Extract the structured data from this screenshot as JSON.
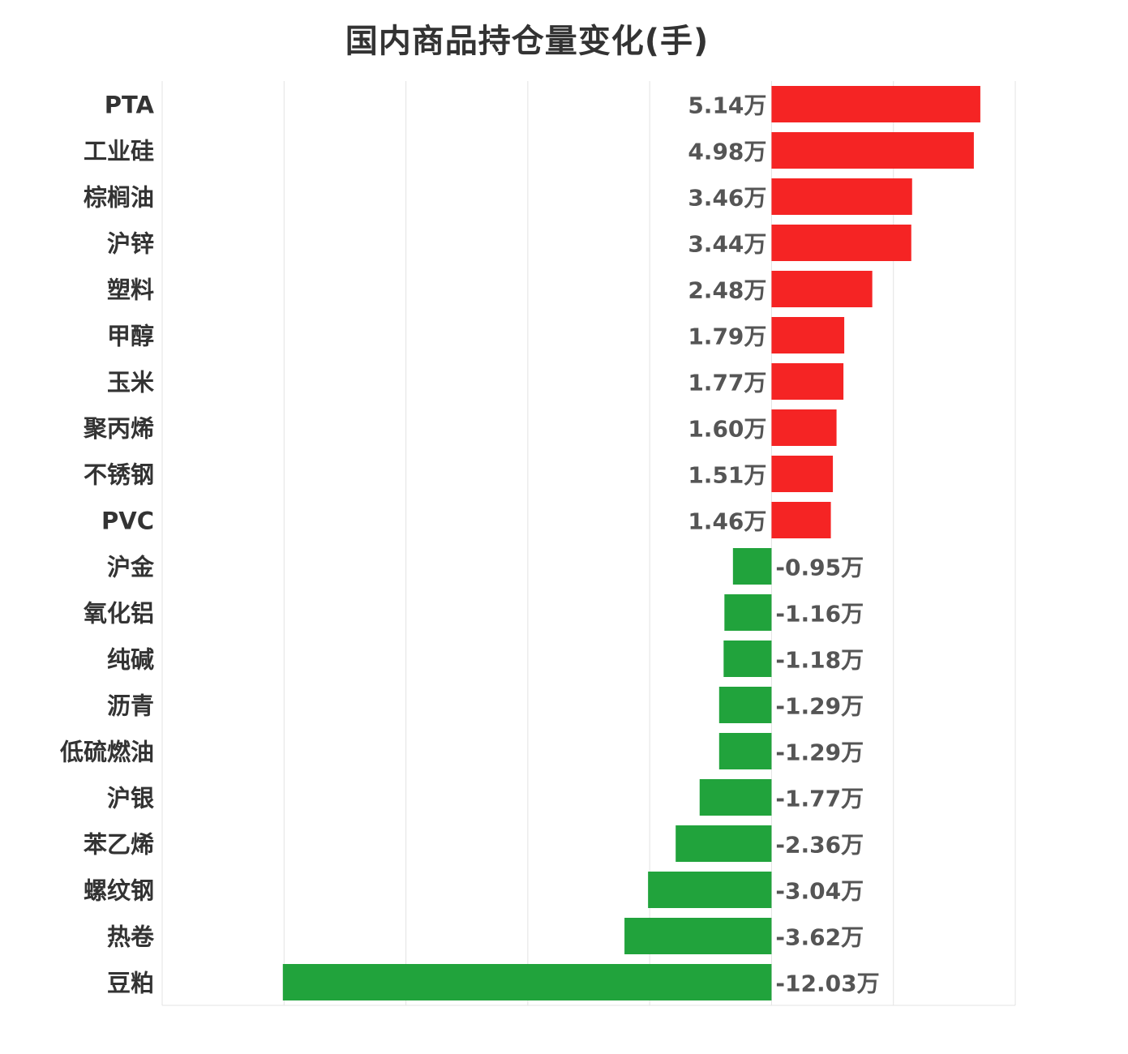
{
  "chart_data": {
    "type": "bar",
    "orientation": "horizontal",
    "title": "国内商品持仓量变化(手)",
    "unit_suffix": "万",
    "categories": [
      "PTA",
      "工业硅",
      "棕榈油",
      "沪锌",
      "塑料",
      "甲醇",
      "玉米",
      "聚丙烯",
      "不锈钢",
      "PVC",
      "沪金",
      "氧化铝",
      "纯碱",
      "沥青",
      "低硫燃油",
      "沪银",
      "苯乙烯",
      "螺纹钢",
      "热卷",
      "豆粕"
    ],
    "values": [
      5.14,
      4.98,
      3.46,
      3.44,
      2.48,
      1.79,
      1.77,
      1.6,
      1.51,
      1.46,
      -0.95,
      -1.16,
      -1.18,
      -1.29,
      -1.29,
      -1.77,
      -2.36,
      -3.04,
      -3.62,
      -12.03
    ],
    "value_labels": [
      "5.14万",
      "4.98万",
      "3.46万",
      "3.44万",
      "2.48万",
      "1.79万",
      "1.77万",
      "1.60万",
      "1.51万",
      "1.46万",
      "-0.95万",
      "-1.16万",
      "-1.18万",
      "-1.29万",
      "-1.29万",
      "-1.77万",
      "-2.36万",
      "-3.04万",
      "-3.62万",
      "-12.03万"
    ],
    "xlim": [
      -15,
      6
    ],
    "grid": true,
    "colors": {
      "positive": "#f52424",
      "negative": "#21a33c"
    }
  }
}
